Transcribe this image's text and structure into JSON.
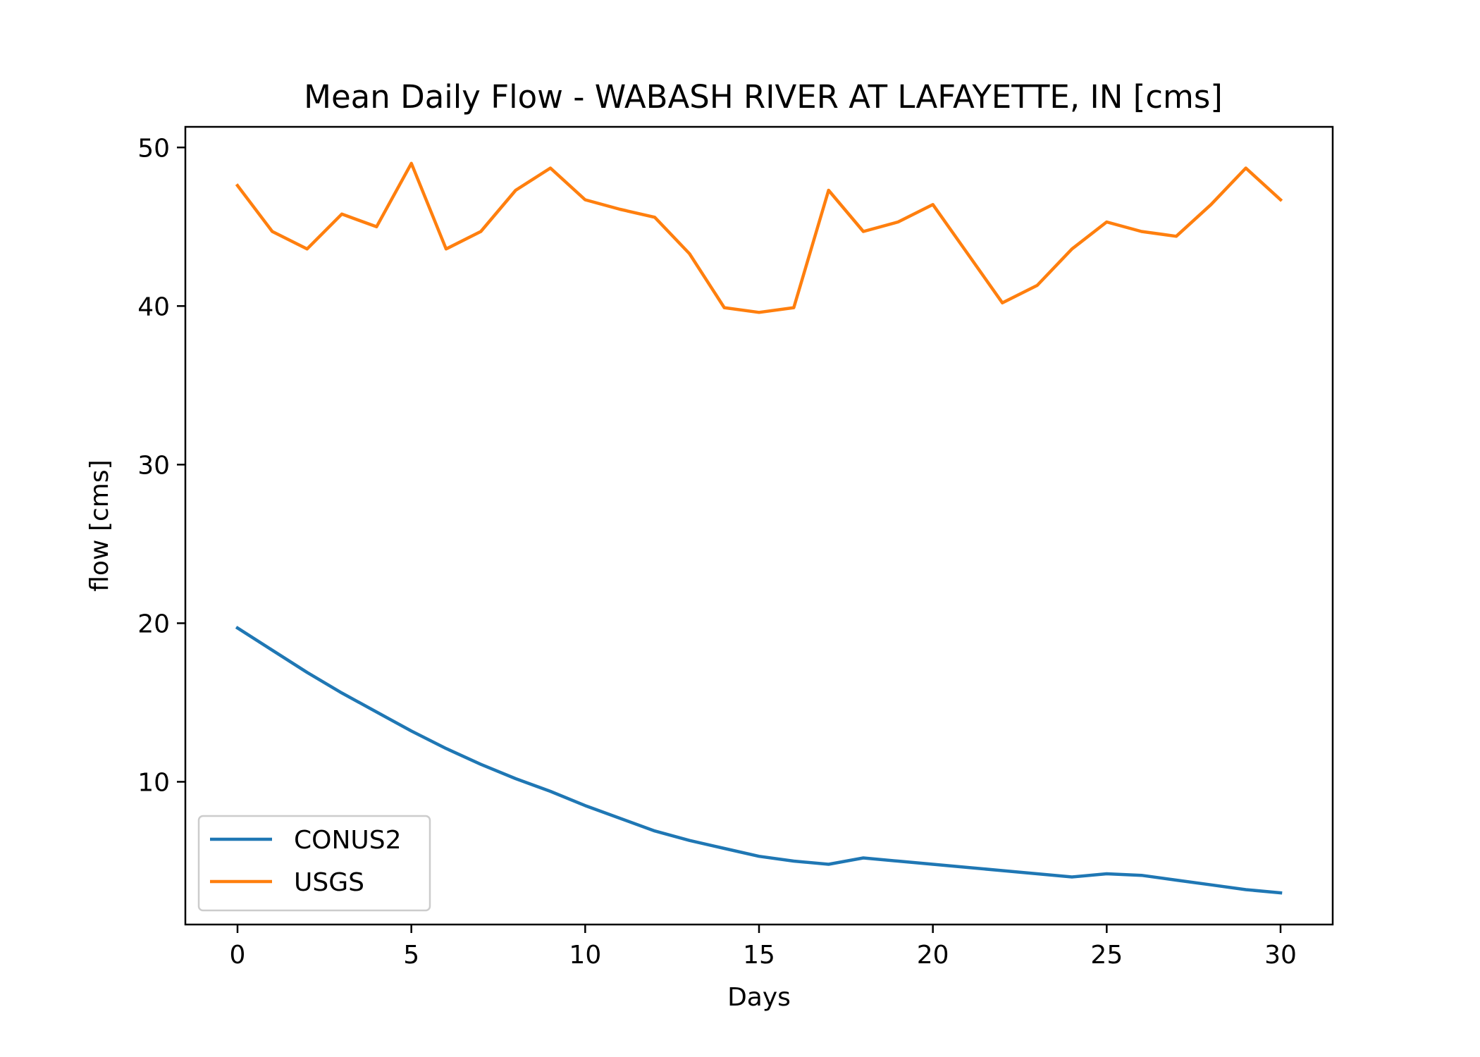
{
  "chart_data": {
    "type": "line",
    "title": "Mean Daily Flow - WABASH RIVER AT LAFAYETTE, IN [cms]",
    "xlabel": "Days",
    "ylabel": "flow [cms]",
    "xlim": [
      -1.5,
      31.5
    ],
    "ylim": [
      1.0,
      51.3
    ],
    "xticks": [
      0,
      5,
      10,
      15,
      20,
      25,
      30
    ],
    "yticks": [
      10,
      20,
      30,
      40,
      50
    ],
    "grid": false,
    "legend_position": "lower-left",
    "x": [
      0,
      1,
      2,
      3,
      4,
      5,
      6,
      7,
      8,
      9,
      10,
      11,
      12,
      13,
      14,
      15,
      16,
      17,
      18,
      19,
      20,
      21,
      22,
      23,
      24,
      25,
      26,
      27,
      28,
      29,
      30
    ],
    "series": [
      {
        "name": "CONUS2",
        "color": "#1f77b4",
        "values": [
          19.7,
          18.3,
          16.9,
          15.6,
          14.4,
          13.2,
          12.1,
          11.1,
          10.2,
          9.4,
          8.5,
          7.7,
          6.9,
          6.3,
          5.8,
          5.3,
          5.0,
          4.8,
          5.2,
          5.0,
          4.8,
          4.6,
          4.4,
          4.2,
          4.0,
          4.2,
          4.1,
          3.8,
          3.5,
          3.2,
          3.0
        ]
      },
      {
        "name": "USGS",
        "color": "#ff7f0e",
        "values": [
          47.6,
          44.7,
          43.6,
          45.8,
          45.0,
          49.0,
          43.6,
          44.7,
          47.3,
          48.7,
          46.7,
          46.1,
          45.6,
          43.3,
          39.9,
          39.6,
          39.9,
          47.3,
          44.7,
          45.3,
          46.4,
          43.3,
          40.2,
          41.3,
          43.6,
          45.3,
          44.7,
          44.4,
          46.4,
          48.7,
          46.7
        ]
      }
    ]
  }
}
